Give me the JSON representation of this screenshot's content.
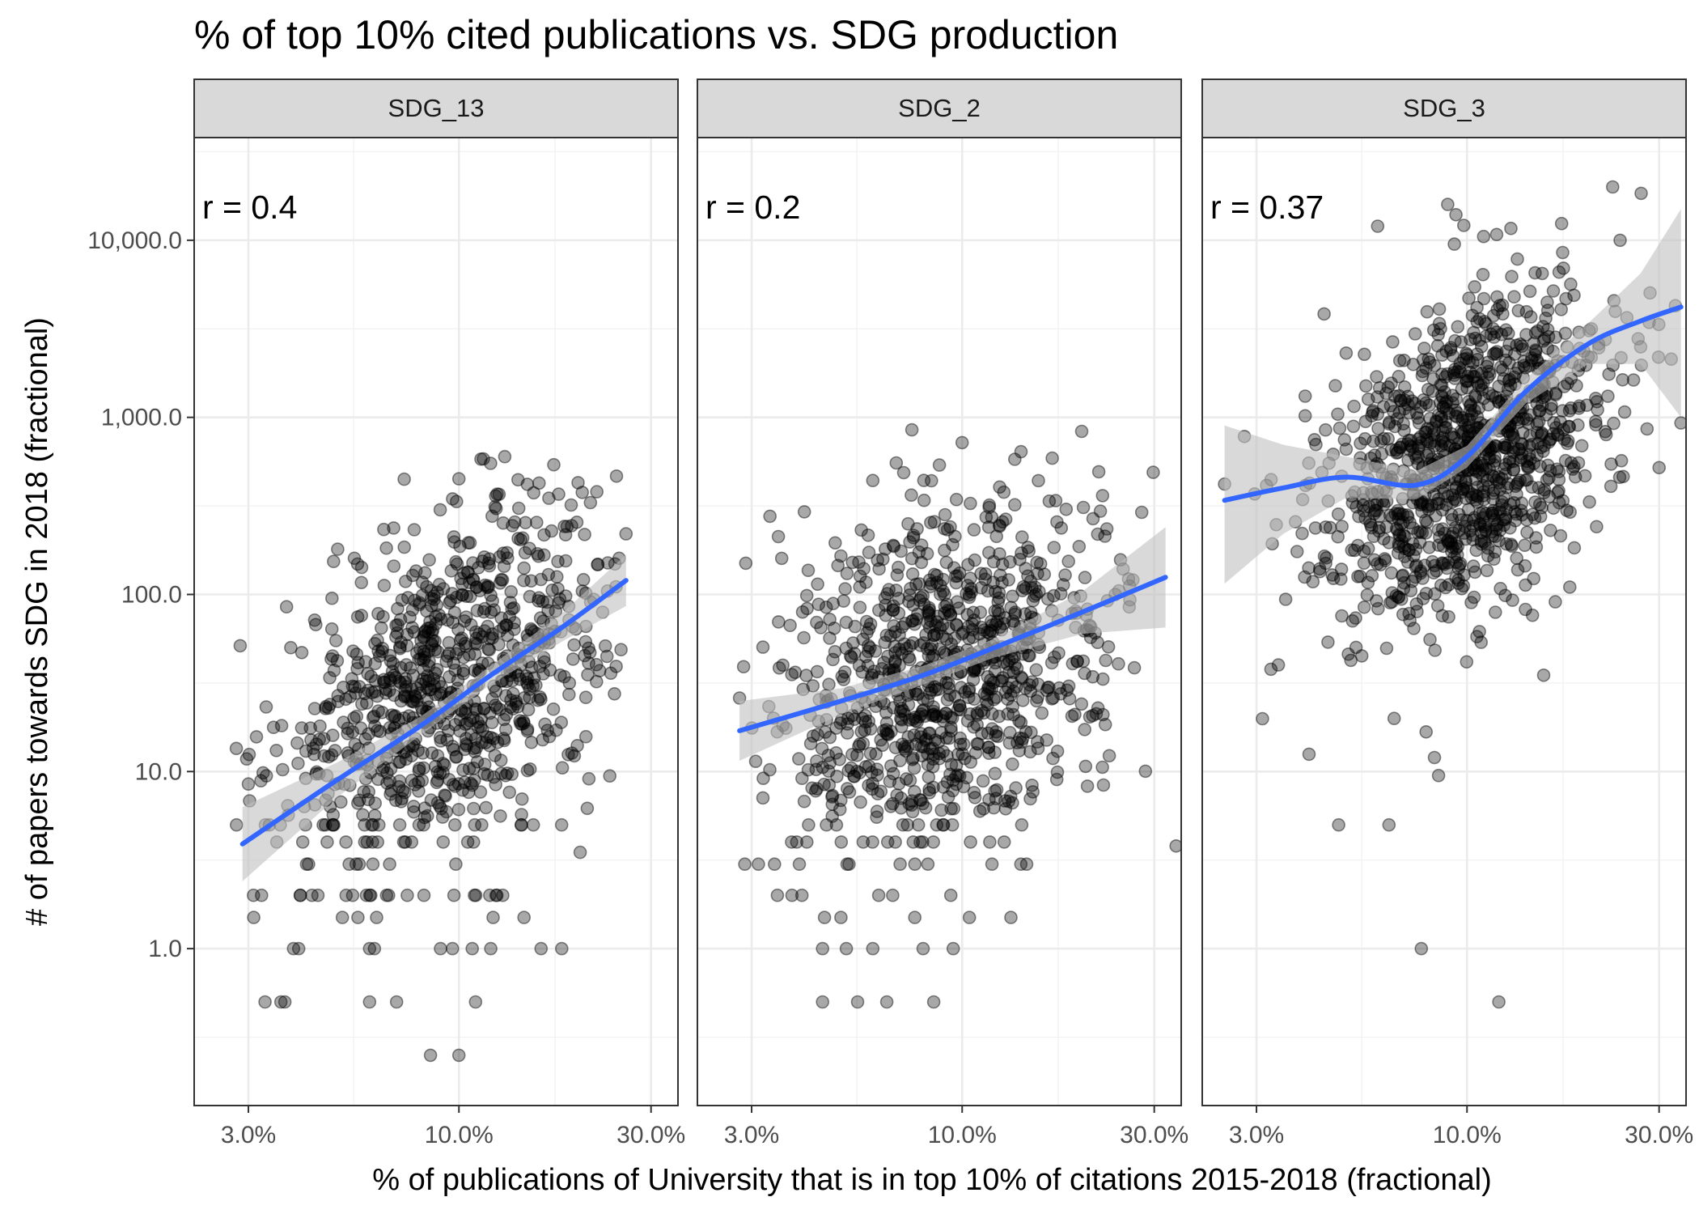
{
  "chart_data": {
    "type": "scatter",
    "title": "% of top 10% cited publications vs. SDG production",
    "xlabel": "% of publications of University that is in top 10% of citations 2015-2018 (fractional)",
    "ylabel": "# of papers towards SDG in 2018 (fractional)",
    "x_scale": "log10",
    "y_scale": "log10",
    "xlim": [
      0.022,
      0.35
    ],
    "ylim": [
      0.13,
      38000
    ],
    "x_ticks": [
      0.03,
      0.1,
      0.3
    ],
    "x_tick_labels": [
      "3.0%",
      "10.0%",
      "30.0%"
    ],
    "y_ticks": [
      1,
      10,
      100,
      1000,
      10000
    ],
    "y_tick_labels": [
      "1.0",
      "10.0",
      "100.0",
      "1,000.0",
      "10,000.0"
    ],
    "grid": true,
    "panels": [
      {
        "label": "SDG_13",
        "annotation": "r = 0.4",
        "cloud": {
          "x_center": 0.095,
          "y_center": 30,
          "x_sigma": 0.21,
          "y_sigma": 0.52,
          "rho": 0.42,
          "n": 900,
          "x_range": [
            0.028,
            0.26
          ],
          "y_range": [
            0.25,
            600
          ]
        },
        "points": [
          {
            "x": 0.028,
            "y": 13.5
          },
          {
            "x": 0.03,
            "y": 8.5
          },
          {
            "x": 0.033,
            "y": 0.5
          },
          {
            "x": 0.05,
            "y": 180
          },
          {
            "x": 0.055,
            "y": 160
          },
          {
            "x": 0.1,
            "y": 450
          },
          {
            "x": 0.13,
            "y": 600
          },
          {
            "x": 0.19,
            "y": 320
          },
          {
            "x": 0.2,
            "y": 3.5
          },
          {
            "x": 0.22,
            "y": 380
          },
          {
            "x": 0.26,
            "y": 220
          },
          {
            "x": 0.25,
            "y": 160
          },
          {
            "x": 0.21,
            "y": 41
          },
          {
            "x": 0.085,
            "y": 0.25
          },
          {
            "x": 0.1,
            "y": 0.25
          },
          {
            "x": 0.06,
            "y": 0.5
          },
          {
            "x": 0.07,
            "y": 0.5
          },
          {
            "x": 0.11,
            "y": 0.5
          },
          {
            "x": 0.04,
            "y": 1
          },
          {
            "x": 0.06,
            "y": 1
          },
          {
            "x": 0.09,
            "y": 1
          },
          {
            "x": 0.12,
            "y": 1
          },
          {
            "x": 0.16,
            "y": 1
          },
          {
            "x": 0.18,
            "y": 1
          }
        ],
        "fit": [
          {
            "x": 0.029,
            "y": 3.9,
            "lo": 2.4,
            "hi": 6.3
          },
          {
            "x": 0.05,
            "y": 9,
            "lo": 7.2,
            "hi": 11.3
          },
          {
            "x": 0.08,
            "y": 18,
            "lo": 16,
            "hi": 20.3
          },
          {
            "x": 0.12,
            "y": 35,
            "lo": 31,
            "hi": 39.5
          },
          {
            "x": 0.18,
            "y": 65,
            "lo": 54,
            "hi": 78
          },
          {
            "x": 0.26,
            "y": 120,
            "lo": 86,
            "hi": 168
          }
        ]
      },
      {
        "label": "SDG_2",
        "annotation": "r = 0.2",
        "cloud": {
          "x_center": 0.09,
          "y_center": 35,
          "x_sigma": 0.2,
          "y_sigma": 0.5,
          "rho": 0.22,
          "n": 950,
          "x_range": [
            0.028,
            0.3
          ],
          "y_range": [
            0.5,
            850
          ]
        },
        "points": [
          {
            "x": 0.028,
            "y": 26
          },
          {
            "x": 0.034,
            "y": 20
          },
          {
            "x": 0.035,
            "y": 70
          },
          {
            "x": 0.075,
            "y": 850
          },
          {
            "x": 0.06,
            "y": 440
          },
          {
            "x": 0.1,
            "y": 720
          },
          {
            "x": 0.14,
            "y": 640
          },
          {
            "x": 0.16,
            "y": 130
          },
          {
            "x": 0.2,
            "y": 310
          },
          {
            "x": 0.26,
            "y": 85
          },
          {
            "x": 0.24,
            "y": 100
          },
          {
            "x": 0.34,
            "y": 3.8
          },
          {
            "x": 0.045,
            "y": 0.5
          },
          {
            "x": 0.055,
            "y": 0.5
          },
          {
            "x": 0.065,
            "y": 0.5
          },
          {
            "x": 0.085,
            "y": 0.5
          },
          {
            "x": 0.045,
            "y": 1
          },
          {
            "x": 0.06,
            "y": 1
          },
          {
            "x": 0.08,
            "y": 1
          },
          {
            "x": 0.095,
            "y": 1
          },
          {
            "x": 0.04,
            "y": 2
          },
          {
            "x": 0.05,
            "y": 1.5
          }
        ],
        "fit": [
          {
            "x": 0.028,
            "y": 17,
            "lo": 11.5,
            "hi": 25
          },
          {
            "x": 0.05,
            "y": 25,
            "lo": 21,
            "hi": 29.5
          },
          {
            "x": 0.08,
            "y": 35,
            "lo": 31,
            "hi": 39.5
          },
          {
            "x": 0.12,
            "y": 50,
            "lo": 44,
            "hi": 56
          },
          {
            "x": 0.2,
            "y": 80,
            "lo": 60,
            "hi": 105
          },
          {
            "x": 0.32,
            "y": 125,
            "lo": 65,
            "hi": 240
          }
        ]
      },
      {
        "label": "SDG_3",
        "annotation": "r = 0.37",
        "cloud": {
          "x_center": 0.1,
          "y_center": 600,
          "x_sigma": 0.18,
          "y_sigma": 0.48,
          "rho": 0.4,
          "n": 1100,
          "x_range": [
            0.025,
            0.34
          ],
          "y_range": [
            0.5,
            20000
          ]
        },
        "points": [
          {
            "x": 0.025,
            "y": 420
          },
          {
            "x": 0.028,
            "y": 780
          },
          {
            "x": 0.034,
            "y": 40
          },
          {
            "x": 0.048,
            "y": 5
          },
          {
            "x": 0.064,
            "y": 5
          },
          {
            "x": 0.077,
            "y": 1
          },
          {
            "x": 0.083,
            "y": 12
          },
          {
            "x": 0.085,
            "y": 9.5
          },
          {
            "x": 0.12,
            "y": 0.5
          },
          {
            "x": 0.06,
            "y": 12000
          },
          {
            "x": 0.11,
            "y": 10500
          },
          {
            "x": 0.23,
            "y": 20000
          },
          {
            "x": 0.24,
            "y": 10000
          },
          {
            "x": 0.27,
            "y": 2500
          },
          {
            "x": 0.28,
            "y": 860
          },
          {
            "x": 0.34,
            "y": 930
          },
          {
            "x": 0.3,
            "y": 520
          },
          {
            "x": 0.18,
            "y": 110
          },
          {
            "x": 0.155,
            "y": 35
          },
          {
            "x": 0.2,
            "y": 2200
          }
        ],
        "fit": [
          {
            "x": 0.025,
            "y": 340,
            "lo": 115,
            "hi": 900
          },
          {
            "x": 0.035,
            "y": 400,
            "lo": 220,
            "hi": 700
          },
          {
            "x": 0.05,
            "y": 460,
            "lo": 350,
            "hi": 600
          },
          {
            "x": 0.075,
            "y": 415,
            "lo": 345,
            "hi": 500
          },
          {
            "x": 0.1,
            "y": 600,
            "lo": 520,
            "hi": 690
          },
          {
            "x": 0.14,
            "y": 1400,
            "lo": 1200,
            "hi": 1650
          },
          {
            "x": 0.2,
            "y": 2600,
            "lo": 2000,
            "hi": 3400
          },
          {
            "x": 0.27,
            "y": 3500,
            "lo": 2000,
            "hi": 6500
          },
          {
            "x": 0.34,
            "y": 4200,
            "lo": 1000,
            "hi": 15000
          }
        ]
      }
    ]
  }
}
